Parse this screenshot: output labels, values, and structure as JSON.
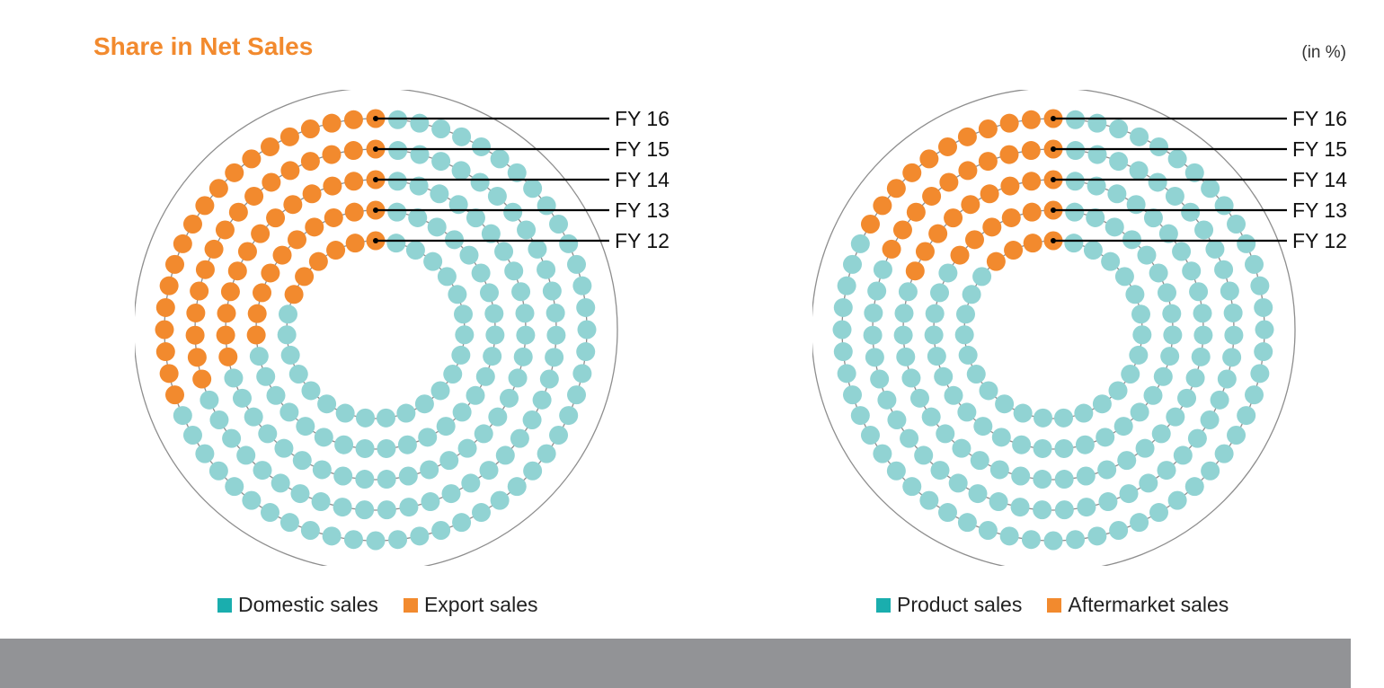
{
  "title": "Share in Net Sales",
  "unit_note": "(in %)",
  "colors": {
    "teal": "#91d3d3",
    "orange": "#f28a2e",
    "title": "#f28a2e",
    "footer": "#929396"
  },
  "chart_data": [
    {
      "type": "pie",
      "rings": [
        "FY 16",
        "FY 15",
        "FY 14",
        "FY 13",
        "FY 12"
      ],
      "series": [
        {
          "name": "Domestic sales",
          "color": "#1aaeae",
          "values": [
            68,
            68,
            69,
            72,
            76
          ]
        },
        {
          "name": "Export sales",
          "color": "#f28a2e",
          "values": [
            32,
            32,
            31,
            28,
            24
          ]
        }
      ]
    },
    {
      "type": "pie",
      "rings": [
        "FY 16",
        "FY 15",
        "FY 14",
        "FY 13",
        "FY 12"
      ],
      "series": [
        {
          "name": "Product sales",
          "color": "#1aaeae",
          "values": [
            82,
            81,
            80,
            82,
            87
          ]
        },
        {
          "name": "Aftermarket sales",
          "color": "#f28a2e",
          "values": [
            18,
            19,
            20,
            18,
            13
          ]
        }
      ]
    }
  ]
}
